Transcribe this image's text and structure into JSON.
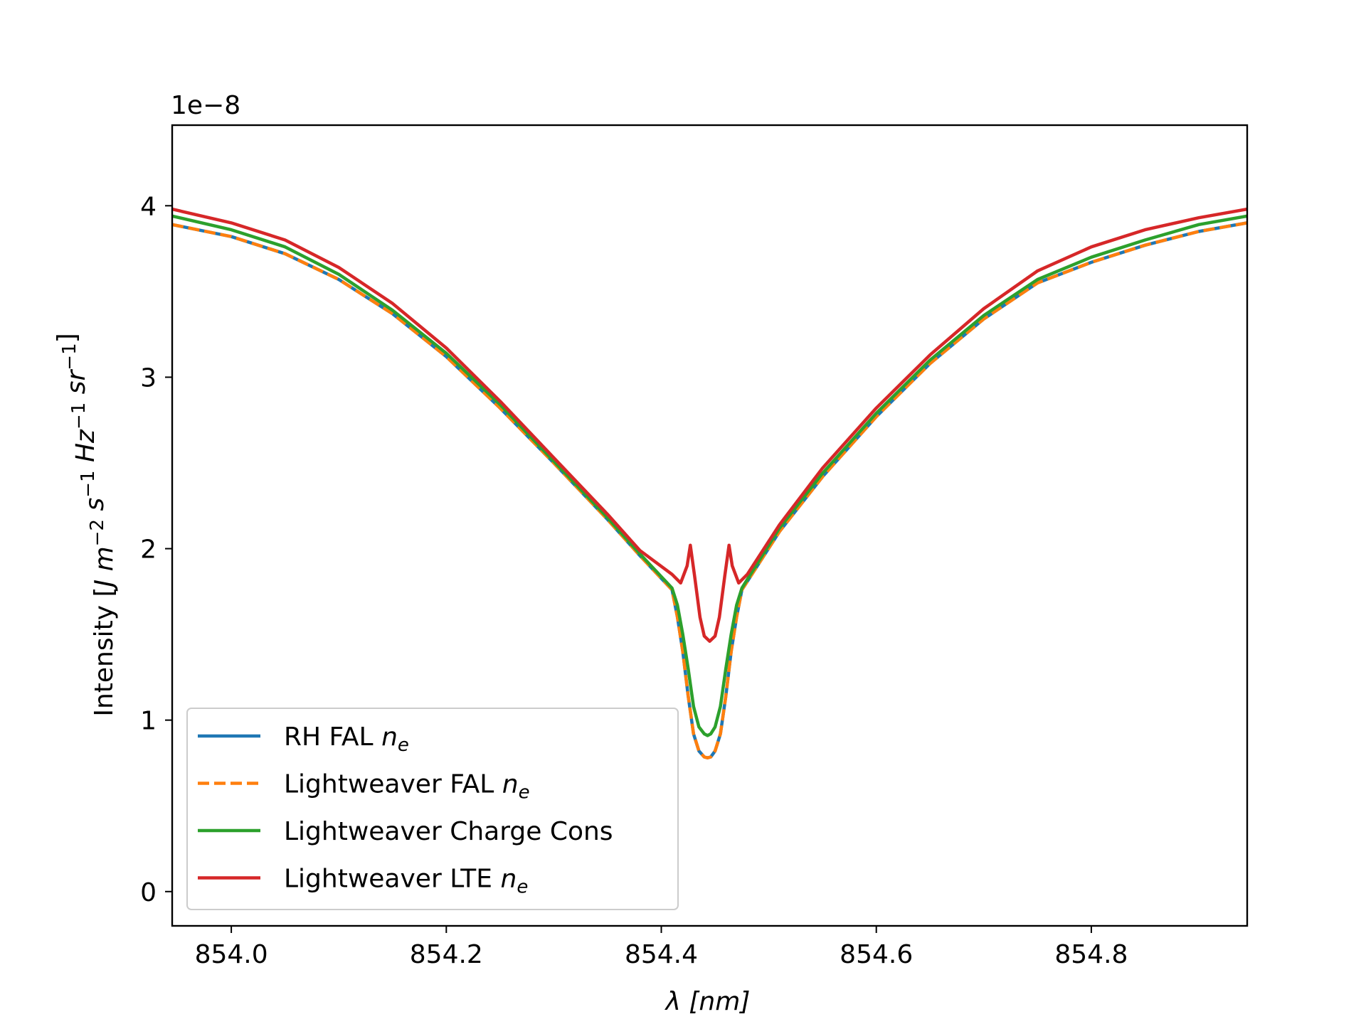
{
  "chart_data": {
    "type": "line",
    "title": "",
    "xlabel": "λ [nm]",
    "xlabel_parts": {
      "symbol": "λ",
      "unit": "[nm]"
    },
    "ylabel": "Intensity [J m^-2 s^-1 Hz^-1 sr^-1]",
    "ylabel_parts": {
      "prefix": "Intensity [",
      "suffix": "]",
      "units": [
        [
          "J",
          ""
        ],
        [
          "m",
          "−2"
        ],
        [
          "s",
          "−1"
        ],
        [
          "Hz",
          "−1"
        ],
        [
          "sr",
          "−1"
        ]
      ]
    },
    "y_offset_text": "1e−8",
    "xlim": [
      853.945,
      854.945
    ],
    "ylim": [
      -0.2,
      4.47
    ],
    "y_scale_factor": 1e-08,
    "x_ticks": [
      854.0,
      854.2,
      854.4,
      854.6,
      854.8
    ],
    "x_tick_labels": [
      "854.0",
      "854.2",
      "854.4",
      "854.6",
      "854.8"
    ],
    "y_ticks": [
      0,
      1,
      2,
      3,
      4
    ],
    "y_tick_labels": [
      "0",
      "1",
      "2",
      "3",
      "4"
    ],
    "grid": false,
    "legend_position": "lower-left",
    "series": [
      {
        "name": "RH FAL n_e",
        "legend_base": "RH FAL ",
        "legend_sym": "n",
        "legend_sub": "e",
        "color": "#1f77b4",
        "style": "solid",
        "x": [
          853.945,
          854.0,
          854.05,
          854.1,
          854.15,
          854.2,
          854.25,
          854.3,
          854.35,
          854.38,
          854.41,
          854.415,
          854.42,
          854.425,
          854.43,
          854.435,
          854.44,
          854.443,
          854.446,
          854.45,
          854.455,
          854.46,
          854.465,
          854.47,
          854.475,
          854.51,
          854.55,
          854.6,
          854.65,
          854.7,
          854.75,
          854.8,
          854.85,
          854.9,
          854.945
        ],
        "y": [
          3.89,
          3.82,
          3.72,
          3.57,
          3.37,
          3.12,
          2.82,
          2.5,
          2.17,
          1.96,
          1.76,
          1.6,
          1.4,
          1.14,
          0.92,
          0.82,
          0.785,
          0.78,
          0.785,
          0.82,
          0.92,
          1.14,
          1.4,
          1.6,
          1.76,
          2.1,
          2.42,
          2.77,
          3.08,
          3.34,
          3.55,
          3.67,
          3.77,
          3.85,
          3.9
        ]
      },
      {
        "name": "Lightweaver FAL n_e",
        "legend_base": "Lightweaver FAL ",
        "legend_sym": "n",
        "legend_sub": "e",
        "color": "#ff7f0e",
        "style": "dashed",
        "x": [
          853.945,
          854.0,
          854.05,
          854.1,
          854.15,
          854.2,
          854.25,
          854.3,
          854.35,
          854.38,
          854.41,
          854.415,
          854.42,
          854.425,
          854.43,
          854.435,
          854.44,
          854.443,
          854.446,
          854.45,
          854.455,
          854.46,
          854.465,
          854.47,
          854.475,
          854.51,
          854.55,
          854.6,
          854.65,
          854.7,
          854.75,
          854.8,
          854.85,
          854.9,
          854.945
        ],
        "y": [
          3.89,
          3.82,
          3.72,
          3.57,
          3.37,
          3.12,
          2.82,
          2.5,
          2.17,
          1.96,
          1.76,
          1.6,
          1.4,
          1.14,
          0.92,
          0.82,
          0.785,
          0.78,
          0.785,
          0.82,
          0.92,
          1.14,
          1.4,
          1.6,
          1.76,
          2.1,
          2.42,
          2.77,
          3.08,
          3.34,
          3.55,
          3.67,
          3.77,
          3.85,
          3.9
        ]
      },
      {
        "name": "Lightweaver Charge Cons",
        "legend_base": "Lightweaver Charge Cons",
        "legend_sym": "",
        "legend_sub": "",
        "color": "#2ca02c",
        "style": "solid",
        "x": [
          853.945,
          854.0,
          854.05,
          854.1,
          854.15,
          854.2,
          854.25,
          854.3,
          854.35,
          854.38,
          854.41,
          854.415,
          854.42,
          854.425,
          854.43,
          854.435,
          854.44,
          854.443,
          854.446,
          854.45,
          854.455,
          854.46,
          854.465,
          854.47,
          854.475,
          854.51,
          854.55,
          854.6,
          854.65,
          854.7,
          854.75,
          854.8,
          854.85,
          854.9,
          854.945
        ],
        "y": [
          3.94,
          3.86,
          3.76,
          3.6,
          3.39,
          3.14,
          2.84,
          2.51,
          2.18,
          1.97,
          1.77,
          1.67,
          1.5,
          1.3,
          1.08,
          0.96,
          0.92,
          0.91,
          0.92,
          0.96,
          1.08,
          1.3,
          1.5,
          1.67,
          1.77,
          2.12,
          2.44,
          2.79,
          3.1,
          3.36,
          3.57,
          3.7,
          3.8,
          3.89,
          3.94
        ]
      },
      {
        "name": "Lightweaver LTE n_e",
        "legend_base": "Lightweaver LTE ",
        "legend_sym": "n",
        "legend_sub": "e",
        "color": "#d62728",
        "style": "solid",
        "x": [
          853.945,
          854.0,
          854.05,
          854.1,
          854.15,
          854.2,
          854.25,
          854.3,
          854.35,
          854.38,
          854.41,
          854.418,
          854.424,
          854.427,
          854.431,
          854.436,
          854.44,
          854.445,
          854.45,
          854.454,
          854.459,
          854.463,
          854.466,
          854.472,
          854.48,
          854.51,
          854.55,
          854.6,
          854.65,
          854.7,
          854.75,
          854.8,
          854.85,
          854.9,
          854.945
        ],
        "y": [
          3.98,
          3.9,
          3.8,
          3.64,
          3.43,
          3.17,
          2.86,
          2.53,
          2.2,
          1.99,
          1.85,
          1.8,
          1.9,
          2.02,
          1.84,
          1.6,
          1.49,
          1.46,
          1.49,
          1.6,
          1.84,
          2.02,
          1.9,
          1.8,
          1.85,
          2.14,
          2.47,
          2.82,
          3.13,
          3.4,
          3.62,
          3.76,
          3.86,
          3.93,
          3.98
        ]
      }
    ]
  }
}
